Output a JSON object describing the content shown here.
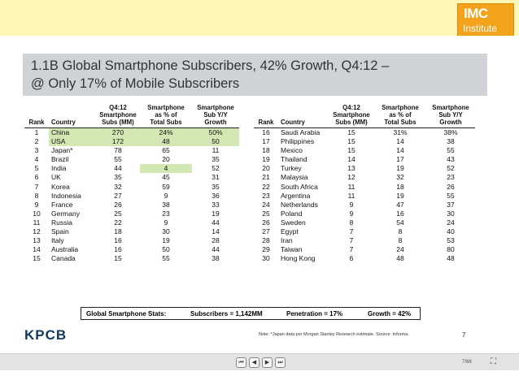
{
  "logo": {
    "line1": "IMC",
    "line2": "Institute"
  },
  "title": {
    "line1": "1.1B Global Smartphone Subscribers, 42% Growth, Q4:12 –",
    "line2": "@ Only 17% of Mobile Subscribers"
  },
  "headers": {
    "rank": "Rank",
    "country": "Country",
    "subs": [
      "Q4:12",
      "Smartphone",
      "Subs (MM)"
    ],
    "pct": [
      "Smartphone",
      "as % of",
      "Total Subs"
    ],
    "growth": [
      "Smartphone",
      "Sub Y/Y",
      "Growth"
    ]
  },
  "left_rows": [
    {
      "rank": "1",
      "country": "China",
      "subs": "270",
      "pct": "24%",
      "growth": "50%"
    },
    {
      "rank": "2",
      "country": "USA",
      "subs": "172",
      "pct": "48",
      "growth": "50"
    },
    {
      "rank": "3",
      "country": "Japan*",
      "subs": "78",
      "pct": "65",
      "growth": "11"
    },
    {
      "rank": "4",
      "country": "Brazil",
      "subs": "55",
      "pct": "20",
      "growth": "35"
    },
    {
      "rank": "5",
      "country": "India",
      "subs": "44",
      "pct": "4",
      "growth": "52"
    },
    {
      "rank": "6",
      "country": "UK",
      "subs": "35",
      "pct": "45",
      "growth": "31"
    },
    {
      "rank": "7",
      "country": "Korea",
      "subs": "32",
      "pct": "59",
      "growth": "35"
    },
    {
      "rank": "8",
      "country": "Indonesia",
      "subs": "27",
      "pct": "9",
      "growth": "36"
    },
    {
      "rank": "9",
      "country": "France",
      "subs": "26",
      "pct": "38",
      "growth": "33"
    },
    {
      "rank": "10",
      "country": "Germany",
      "subs": "25",
      "pct": "23",
      "growth": "19"
    },
    {
      "rank": "11",
      "country": "Russia",
      "subs": "22",
      "pct": "9",
      "growth": "44"
    },
    {
      "rank": "12",
      "country": "Spain",
      "subs": "18",
      "pct": "30",
      "growth": "14"
    },
    {
      "rank": "13",
      "country": "Italy",
      "subs": "16",
      "pct": "19",
      "growth": "28"
    },
    {
      "rank": "14",
      "country": "Australia",
      "subs": "16",
      "pct": "50",
      "growth": "44"
    },
    {
      "rank": "15",
      "country": "Canada",
      "subs": "15",
      "pct": "55",
      "growth": "38"
    }
  ],
  "right_rows": [
    {
      "rank": "16",
      "country": "Saudi Arabia",
      "subs": "15",
      "pct": "31%",
      "growth": "38%"
    },
    {
      "rank": "17",
      "country": "Philippines",
      "subs": "15",
      "pct": "14",
      "growth": "38"
    },
    {
      "rank": "18",
      "country": "Mexico",
      "subs": "15",
      "pct": "14",
      "growth": "55"
    },
    {
      "rank": "19",
      "country": "Thailand",
      "subs": "14",
      "pct": "17",
      "growth": "43"
    },
    {
      "rank": "20",
      "country": "Turkey",
      "subs": "13",
      "pct": "19",
      "growth": "52"
    },
    {
      "rank": "21",
      "country": "Malaysia",
      "subs": "12",
      "pct": "32",
      "growth": "23"
    },
    {
      "rank": "22",
      "country": "South Africa",
      "subs": "11",
      "pct": "18",
      "growth": "26"
    },
    {
      "rank": "23",
      "country": "Argentina",
      "subs": "11",
      "pct": "19",
      "growth": "55"
    },
    {
      "rank": "24",
      "country": "Netherlands",
      "subs": "9",
      "pct": "47",
      "growth": "37"
    },
    {
      "rank": "25",
      "country": "Poland",
      "subs": "9",
      "pct": "16",
      "growth": "30"
    },
    {
      "rank": "26",
      "country": "Sweden",
      "subs": "8",
      "pct": "54",
      "growth": "24"
    },
    {
      "rank": "27",
      "country": "Egypt",
      "subs": "7",
      "pct": "8",
      "growth": "40"
    },
    {
      "rank": "28",
      "country": "Iran",
      "subs": "7",
      "pct": "8",
      "growth": "53"
    },
    {
      "rank": "29",
      "country": "Taiwan",
      "subs": "7",
      "pct": "24",
      "growth": "80"
    },
    {
      "rank": "30",
      "country": "Hong Kong",
      "subs": "6",
      "pct": "48",
      "growth": "48"
    }
  ],
  "stats": {
    "label": "Global Smartphone Stats:",
    "subscribers": "Subscribers = 1,142MM",
    "penetration": "Penetration = 17%",
    "growth": "Growth = 42%"
  },
  "footer": {
    "brand": "KPCB",
    "note": "Note: *Japan data per Morgan Stanley Research estimate.  Source: Informa.",
    "page": "7"
  },
  "player": {
    "page_indicator": "7/66"
  }
}
